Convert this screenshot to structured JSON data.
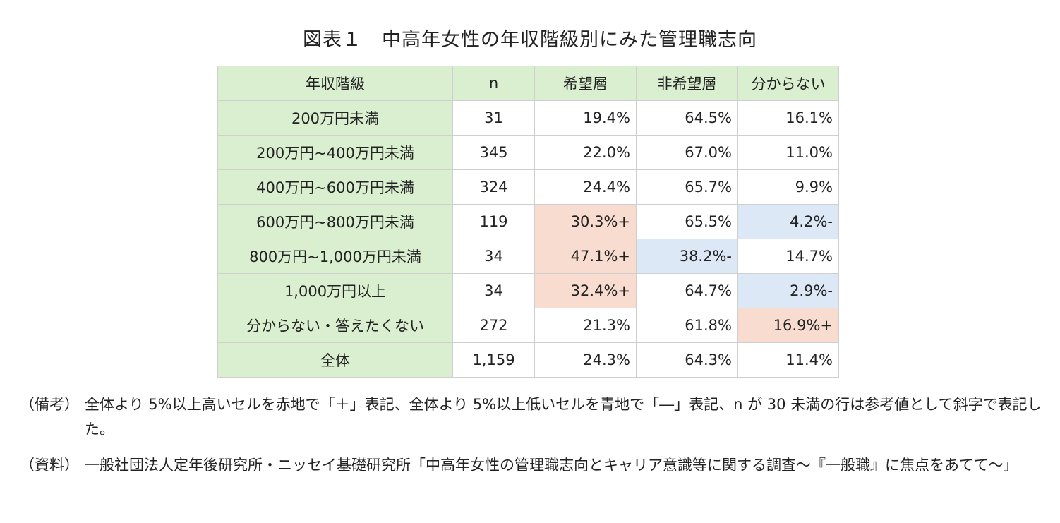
{
  "title": "図表１　中高年女性の年収階級別にみた管理職志向",
  "table": {
    "headers": [
      "年収階級",
      "n",
      "希望層",
      "非希望層",
      "分からない"
    ],
    "rows": [
      {
        "label": "200万円未満",
        "n": "31",
        "want": "19.4%",
        "nowant": "64.5%",
        "unknown": "16.1%"
      },
      {
        "label": "200万円~400万円未満",
        "n": "345",
        "want": "22.0%",
        "nowant": "67.0%",
        "unknown": "11.0%"
      },
      {
        "label": "400万円~600万円未満",
        "n": "324",
        "want": "24.4%",
        "nowant": "65.7%",
        "unknown": "9.9%"
      },
      {
        "label": "600万円~800万円未満",
        "n": "119",
        "want": "30.3%+",
        "nowant": "65.5%",
        "unknown": "4.2%-"
      },
      {
        "label": "800万円~1,000万円未満",
        "n": "34",
        "want": "47.1%+",
        "nowant": "38.2%-",
        "unknown": "14.7%"
      },
      {
        "label": "1,000万円以上",
        "n": "34",
        "want": "32.4%+",
        "nowant": "64.7%",
        "unknown": "2.9%-"
      },
      {
        "label": "分からない・答えたくない",
        "n": "272",
        "want": "21.3%",
        "nowant": "61.8%",
        "unknown": "16.9%+"
      },
      {
        "label": "全体",
        "n": "1,159",
        "want": "24.3%",
        "nowant": "64.3%",
        "unknown": "11.4%"
      }
    ]
  },
  "notes": {
    "remarks_tag": "（備考）",
    "remarks_text": "全体より 5%以上高いセルを赤地で「＋」表記、全体より 5%以上低いセルを青地で「―」表記、n が 30 未満の行は参考値として斜字で表記した。",
    "source_tag": "（資料）",
    "source_text": "一般社団法人定年後研究所・ニッセイ基礎研究所「中高年女性の管理職志向とキャリア意識等に関する調査～『一般職』に焦点をあてて～」"
  },
  "colors": {
    "header_bg": "#d9efcf",
    "high_bg": "#f9dcd0",
    "low_bg": "#dce8f6"
  }
}
